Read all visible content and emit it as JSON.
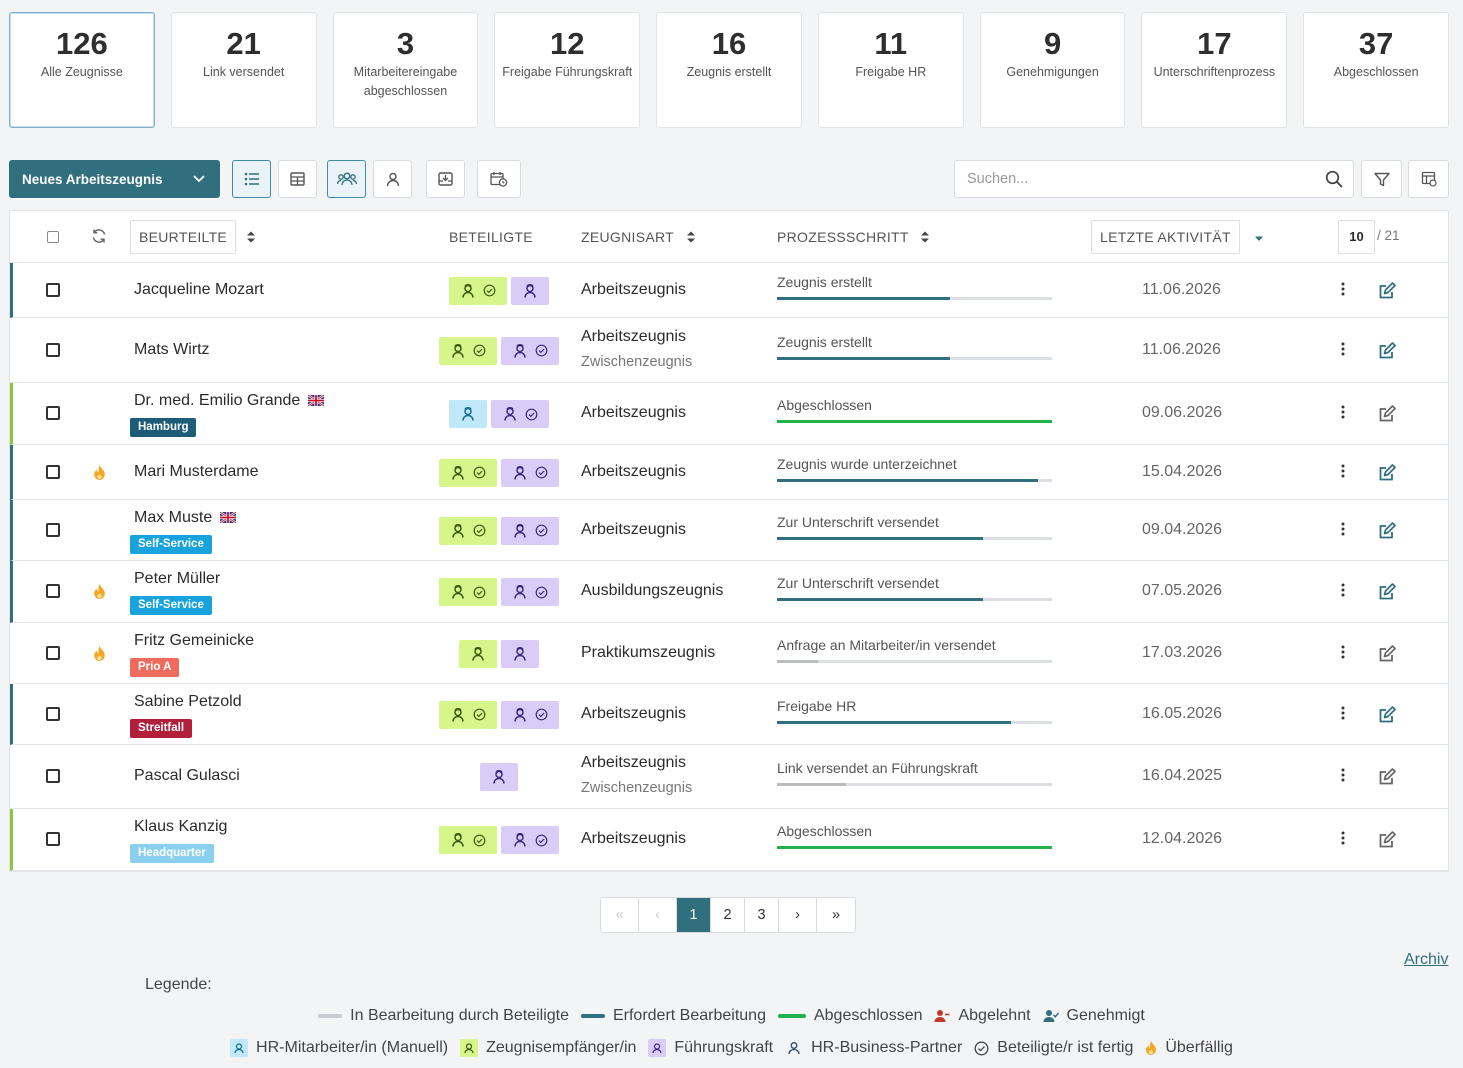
{
  "cards": [
    {
      "num": "126",
      "label": "Alle Zeugnisse"
    },
    {
      "num": "21",
      "label": "Link versendet"
    },
    {
      "num": "3",
      "label": "Mitarbeitereingabe abgeschlossen"
    },
    {
      "num": "12",
      "label": "Freigabe Führungskraft"
    },
    {
      "num": "16",
      "label": "Zeugnis erstellt"
    },
    {
      "num": "11",
      "label": "Freigabe HR"
    },
    {
      "num": "9",
      "label": "Genehmigungen"
    },
    {
      "num": "17",
      "label": "Unterschriftenprozess"
    },
    {
      "num": "37",
      "label": "Abgeschlossen"
    }
  ],
  "toolbar": {
    "new_label": "Neues Arbeitszeugnis",
    "search_placeholder": "Suchen..."
  },
  "table": {
    "headers": {
      "beurteilte": "BEURTEILTE",
      "beteiligte": "BETEILIGTE",
      "zeugnisart": "ZEUGNISART",
      "prozessschritt": "PROZESSSCHRITT",
      "letzte": "LETZTE AKTIVITÄT"
    },
    "page_size": "10",
    "page_total": "/ 21",
    "rows": [
      {
        "name": "Jacqueline Mozart",
        "flag": false,
        "tag": "",
        "overdue": false,
        "art": "Arbeitszeugnis",
        "art2": "",
        "step": "Zeugnis erstellt",
        "progress": 0.63,
        "bar": "teal",
        "date": "11.06.2026"
      },
      {
        "name": "Mats Wirtz",
        "flag": false,
        "tag": "",
        "overdue": false,
        "art": "Arbeitszeugnis",
        "art2": "Zwischenzeugnis",
        "step": "Zeugnis erstellt",
        "progress": 0.63,
        "bar": "teal",
        "date": "11.06.2026"
      },
      {
        "name": "Dr. med. Emilio Grande",
        "flag": true,
        "tag": "Hamburg",
        "overdue": false,
        "art": "Arbeitszeugnis",
        "art2": "",
        "step": "Abgeschlossen",
        "progress": 1.0,
        "bar": "green",
        "date": "09.06.2026"
      },
      {
        "name": "Mari Musterdame",
        "flag": false,
        "tag": "",
        "overdue": true,
        "art": "Arbeitszeugnis",
        "art2": "",
        "step": "Zeugnis wurde unterzeichnet",
        "progress": 0.95,
        "bar": "teal",
        "date": "15.04.2026"
      },
      {
        "name": "Max Muste",
        "flag": true,
        "tag": "Self-Service",
        "overdue": false,
        "art": "Arbeitszeugnis",
        "art2": "",
        "step": "Zur Unterschrift versendet",
        "progress": 0.75,
        "bar": "teal",
        "date": "09.04.2026"
      },
      {
        "name": "Peter Müller",
        "flag": false,
        "tag": "Self-Service",
        "overdue": true,
        "art": "Ausbildungszeugnis",
        "art2": "",
        "step": "Zur Unterschrift versendet",
        "progress": 0.75,
        "bar": "teal",
        "date": "07.05.2026"
      },
      {
        "name": "Fritz Gemeinicke",
        "flag": false,
        "tag": "Prio A",
        "overdue": true,
        "art": "Praktikumszeugnis",
        "art2": "",
        "step": "Anfrage an Mitarbeiter/in versendet",
        "progress": 0.15,
        "bar": "grey",
        "date": "17.03.2026"
      },
      {
        "name": "Sabine Petzold",
        "flag": false,
        "tag": "Streitfall",
        "overdue": false,
        "art": "Arbeitszeugnis",
        "art2": "",
        "step": "Freigabe HR",
        "progress": 0.85,
        "bar": "teal",
        "date": "16.05.2026"
      },
      {
        "name": "Pascal Gulasci",
        "flag": false,
        "tag": "",
        "overdue": false,
        "art": "Arbeitszeugnis",
        "art2": "Zwischenzeugnis",
        "step": "Link versendet an Führungskraft",
        "progress": 0.25,
        "bar": "grey",
        "date": "16.04.2025"
      },
      {
        "name": "Klaus Kanzig",
        "flag": false,
        "tag": "Headquarter",
        "overdue": false,
        "art": "Arbeitszeugnis",
        "art2": "",
        "step": "Abgeschlossen",
        "progress": 1.0,
        "bar": "green",
        "date": "12.04.2026"
      }
    ]
  },
  "pagination": {
    "pages": [
      "1",
      "2",
      "3"
    ],
    "current": "1"
  },
  "archiv": "Archiv",
  "legend": {
    "title": "Legende:",
    "in_bearbeitung": "In Bearbeitung durch Beteiligte",
    "erfordert": "Erfordert Bearbeitung",
    "abgeschlossen": "Abgeschlossen",
    "abgelehnt": "Abgelehnt",
    "genehmigt": "Genehmigt",
    "hr_manuell": "HR-Mitarbeiter/in (Manuell)",
    "empfaenger": "Zeugnisempfänger/in",
    "fuehrungskraft": "Führungskraft",
    "hr_bp": "HR-Business-Partner",
    "fertig": "Beteiligte/r ist fertig",
    "ueberfaellig": "Überfällig"
  },
  "colors": {
    "primary": "#2f6f7e",
    "green_done": "#22b14c",
    "pill_green": "#d6f58b",
    "pill_purple": "#d9cdf7",
    "pill_blue": "#bfe9f8",
    "overdue": "#f5a623"
  }
}
